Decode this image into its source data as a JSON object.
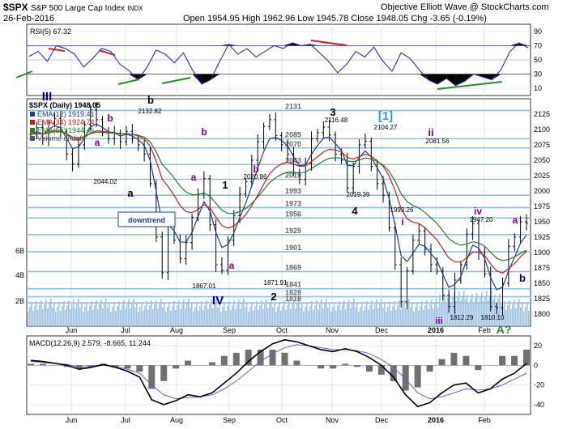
{
  "header": {
    "symbol": "$SPX",
    "name": "S&P 500 Large Cap Index",
    "exchange": "INDX",
    "date": "26-Feb-2016",
    "ohlc": "Open 1954.95  High 1962.96  Low 1945.78  Close 1948.05  Chg -3.65 (-0.19%)",
    "source": "Objective Elliott Wave @ StockCharts.com"
  },
  "rsi_label": "RSI(5) 67.32",
  "price_label": "$SPX (Daily) 1948.05",
  "macd_label": "MACD(12,26,9) 2.579, -8.665, 11.244",
  "trend_label": "downtrend",
  "legend": [
    {
      "text": "EMA(12) 1919.41",
      "color": "#1e3c8c"
    },
    {
      "text": "EMA(34) 1924.74",
      "color": "#c81e1e"
    },
    {
      "text": "EMA(55) 1944.46",
      "color": "#2a7a2a"
    },
    {
      "text": "Volume undef",
      "color": "#555555"
    }
  ],
  "colors": {
    "price_bars": "#000000",
    "ema12": "#1e3c8c",
    "ema34": "#c81e1e",
    "ema55": "#2a7a2a",
    "volume": "#a9c3dc",
    "level_lines": "#8fc0e0",
    "rsi_line": "#2a2ab4",
    "macd_line": "#000000",
    "signal_line": "#6060d0",
    "histogram": "#707070"
  },
  "chart_data": [
    {
      "type": "line",
      "panel": "RSI",
      "ylim": [
        0,
        100
      ],
      "yticks": [
        10,
        30,
        50,
        70,
        90
      ],
      "ref_lines": [
        30,
        50,
        70
      ],
      "series": [
        {
          "name": "RSI(5)",
          "values": [
            55,
            62,
            48,
            70,
            66,
            58,
            40,
            52,
            66,
            62,
            44,
            35,
            22,
            40,
            64,
            58,
            46,
            60,
            36,
            16,
            22,
            48,
            72,
            58,
            66,
            54,
            62,
            70,
            66,
            74,
            70,
            72,
            60,
            48,
            32,
            44,
            62,
            54,
            68,
            48,
            34,
            60,
            52,
            36,
            22,
            16,
            24,
            14,
            20,
            30,
            26,
            22,
            36,
            62,
            74,
            67
          ]
        }
      ]
    },
    {
      "type": "ohlc",
      "panel": "Price",
      "ylim": [
        1780,
        2150
      ],
      "yticks": [
        1800,
        1825,
        1850,
        1875,
        1900,
        1925,
        1950,
        1975,
        2000,
        2025,
        2050,
        2075,
        2100,
        2125
      ],
      "close": [
        2092,
        2103,
        2085,
        2110,
        2118,
        2096,
        2060,
        2044,
        2075,
        2108,
        2132,
        2116,
        2095,
        2085,
        2094,
        2080,
        2097,
        2085,
        2075,
        2060,
        2012,
        1925,
        1867,
        1943,
        1920,
        1890,
        1916,
        1957,
        1995,
        2020,
        1945,
        1880,
        1871,
        1920,
        1960,
        1995,
        2015,
        2050,
        2080,
        2105,
        2116,
        2090,
        2075,
        2060,
        2030,
        2019,
        2045,
        2085,
        2095,
        2104,
        2091,
        2060,
        2050,
        2005,
        2040,
        2075,
        2081,
        2040,
        2012,
        1993,
        1940,
        1880,
        1820,
        1870,
        1920,
        1935,
        1905,
        1880,
        1870,
        1830,
        1812,
        1855,
        1880,
        1930,
        1947,
        1900,
        1865,
        1812,
        1810,
        1850,
        1910,
        1925,
        1950,
        1948
      ],
      "volume_note": "Volume undef",
      "volume_ticks": [
        "2B",
        "4B",
        "6B"
      ],
      "level_lines": [
        2131,
        2085,
        2070,
        2043,
        2019,
        1993,
        1973,
        1956,
        1929,
        1901,
        1869,
        1841,
        1828,
        1818
      ],
      "price_labels": [
        "2132.82",
        "2044.02",
        "2020.86",
        "1867.01",
        "1871.91",
        "2116.48",
        "2104.27",
        "2019.39",
        "2081.56",
        "1993.26",
        "1947.20",
        "1812.29",
        "1810.10"
      ],
      "wave_labels": [
        "III",
        "b",
        "a",
        "b",
        "a",
        "b",
        "b",
        "1",
        "a",
        "IV",
        "2",
        "3",
        "[1]",
        "4",
        "ii",
        "i",
        "iv",
        "a",
        "iii",
        "A?",
        "b"
      ]
    },
    {
      "type": "line",
      "panel": "MACD",
      "ylim": [
        -50,
        30
      ],
      "yticks": [
        -40,
        -20,
        0,
        20
      ],
      "series": [
        {
          "name": "MACD",
          "values": [
            5,
            4,
            2,
            0,
            -4,
            -2,
            1,
            -2,
            -6,
            -12,
            -35,
            -40,
            -36,
            -30,
            -32,
            -28,
            -18,
            -8,
            4,
            14,
            22,
            26,
            24,
            20,
            16,
            14,
            17,
            14,
            8,
            0,
            -12,
            -30,
            -42,
            -38,
            -28,
            -20,
            -18,
            -28,
            -24,
            -14,
            -8,
            2
          ]
        },
        {
          "name": "Signal",
          "values": [
            4,
            3,
            2,
            1,
            -2,
            -1,
            0,
            -1,
            -4,
            -8,
            -20,
            -30,
            -34,
            -33,
            -32,
            -30,
            -24,
            -16,
            -6,
            4,
            12,
            18,
            21,
            20,
            18,
            16,
            16,
            15,
            12,
            6,
            -2,
            -14,
            -28,
            -34,
            -32,
            -28,
            -24,
            -25,
            -24,
            -20,
            -14,
            -8
          ]
        }
      ]
    }
  ],
  "x_axis": {
    "labels": [
      "Jun",
      "Jul",
      "Aug",
      "Sep",
      "Oct",
      "Nov",
      "Dec",
      "2016",
      "Feb"
    ]
  }
}
